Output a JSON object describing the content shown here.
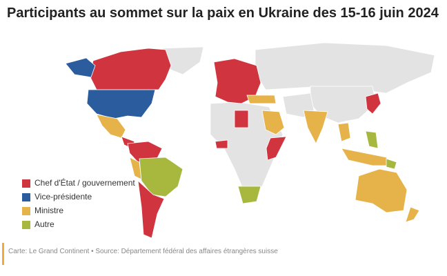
{
  "title": "Participants au sommet sur la paix en Ukraine des 15-16 juin 2024",
  "legend": [
    {
      "label": "Chef d'État / gouvernement",
      "color": "#d0343f"
    },
    {
      "label": "Vice-présidente",
      "color": "#2a5c9e"
    },
    {
      "label": "Ministre",
      "color": "#e6b34a"
    },
    {
      "label": "Autre",
      "color": "#a8b83e"
    }
  ],
  "source": "Carte: Le Grand Continent • Source: Département fédéral des affaires étrangères suisse"
}
